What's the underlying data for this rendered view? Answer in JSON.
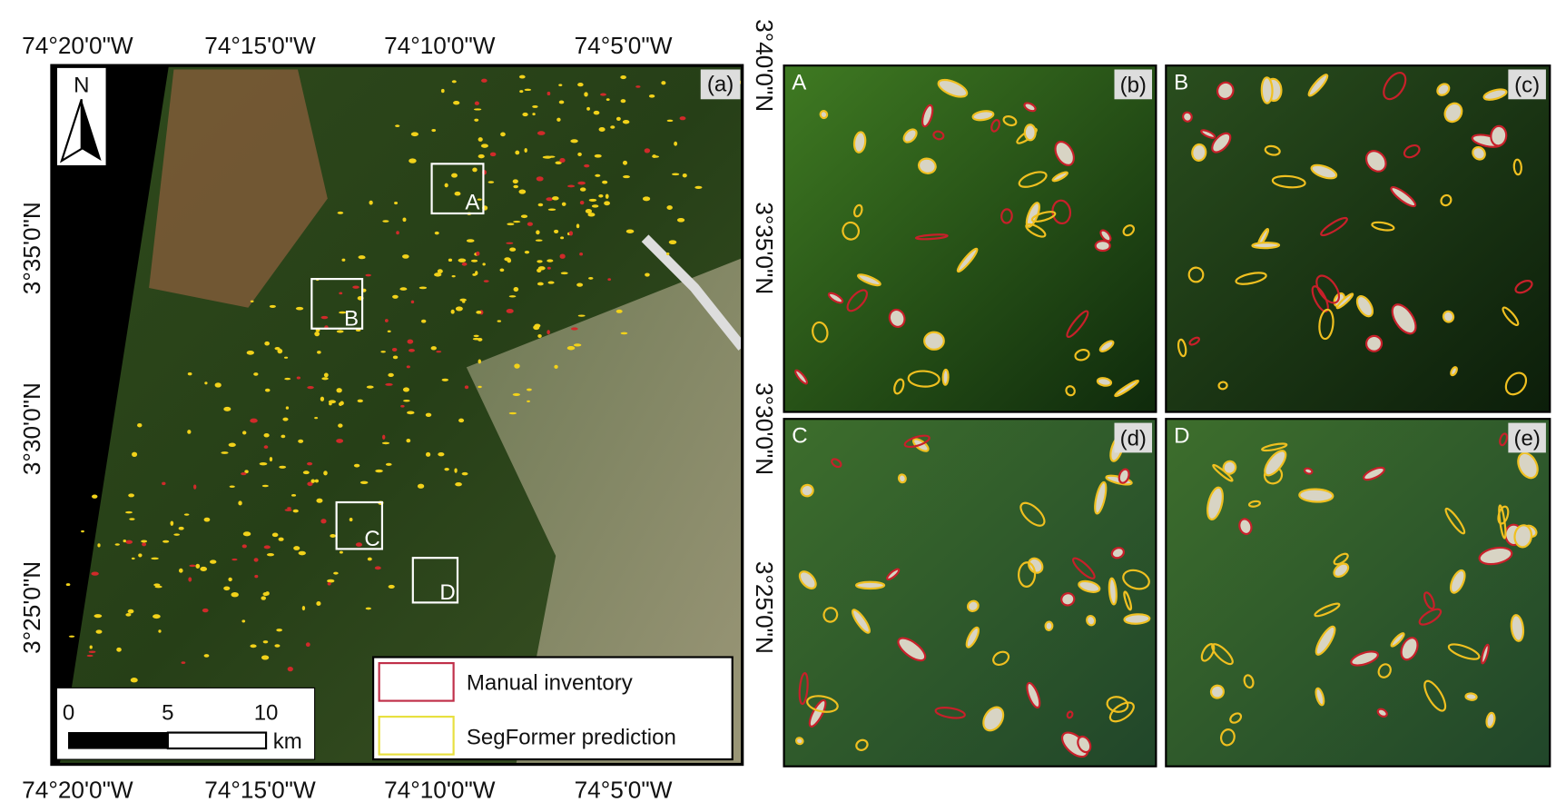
{
  "map": {
    "panel_label": "(a)",
    "top_longitudes": [
      "74°20'0\"W",
      "74°15'0\"W",
      "74°10'0\"W",
      "74°5'0\"W"
    ],
    "bottom_longitudes": [
      "74°20'0\"W",
      "74°15'0\"W",
      "74°10'0\"W",
      "74°5'0\"W"
    ],
    "left_latitudes": [
      "3°35'0\"N",
      "3°30'0\"N",
      "3°25'0\"N"
    ],
    "right_latitudes": [
      "3°40'0\"N",
      "3°35'0\"N",
      "3°30'0\"N",
      "3°25'0\"N"
    ],
    "north": "N",
    "scale_bar": {
      "ticks": [
        0,
        5,
        10
      ],
      "unit": "km"
    },
    "legend": [
      "Manual inventory",
      "SegFormer prediction"
    ],
    "inset_boxes": [
      "A",
      "B",
      "C",
      "D"
    ]
  },
  "panels": [
    {
      "letter": "A",
      "label": "(b)"
    },
    {
      "letter": "B",
      "label": "(c)"
    },
    {
      "letter": "C",
      "label": "(d)"
    },
    {
      "letter": "D",
      "label": "(e)"
    }
  ]
}
